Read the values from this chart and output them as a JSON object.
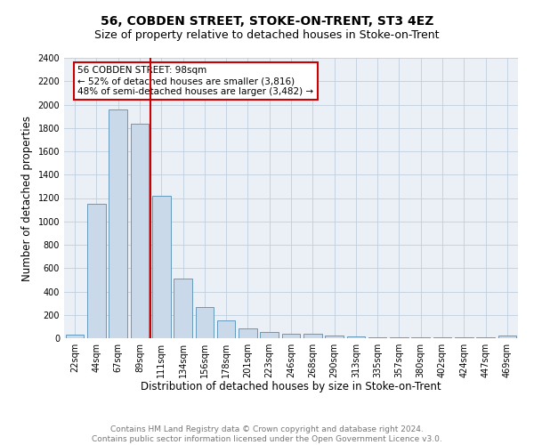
{
  "title": "56, COBDEN STREET, STOKE-ON-TRENT, ST3 4EZ",
  "subtitle": "Size of property relative to detached houses in Stoke-on-Trent",
  "xlabel": "Distribution of detached houses by size in Stoke-on-Trent",
  "ylabel": "Number of detached properties",
  "categories": [
    "22sqm",
    "44sqm",
    "67sqm",
    "89sqm",
    "111sqm",
    "134sqm",
    "156sqm",
    "178sqm",
    "201sqm",
    "223sqm",
    "246sqm",
    "268sqm",
    "290sqm",
    "313sqm",
    "335sqm",
    "357sqm",
    "380sqm",
    "402sqm",
    "424sqm",
    "447sqm",
    "469sqm"
  ],
  "values": [
    28,
    1150,
    1960,
    1840,
    1220,
    510,
    265,
    150,
    85,
    50,
    40,
    40,
    20,
    15,
    8,
    5,
    5,
    5,
    5,
    5,
    20
  ],
  "bar_color": "#c9d9ea",
  "bar_edge_color": "#6699bb",
  "grid_color": "#c0cede",
  "background_color": "#eaf0f6",
  "vline_x": 3.5,
  "vline_color": "#cc0000",
  "annotation_title": "56 COBDEN STREET: 98sqm",
  "annotation_line1": "← 52% of detached houses are smaller (3,816)",
  "annotation_line2": "48% of semi-detached houses are larger (3,482) →",
  "annotation_box_color": "#cc0000",
  "footer_line1": "Contains HM Land Registry data © Crown copyright and database right 2024.",
  "footer_line2": "Contains public sector information licensed under the Open Government Licence v3.0.",
  "ylim": [
    0,
    2400
  ],
  "yticks": [
    0,
    200,
    400,
    600,
    800,
    1000,
    1200,
    1400,
    1600,
    1800,
    2000,
    2200,
    2400
  ],
  "title_fontsize": 10,
  "subtitle_fontsize": 9,
  "xlabel_fontsize": 8.5,
  "ylabel_fontsize": 8.5,
  "tick_fontsize": 7,
  "annotation_fontsize": 7.5,
  "footer_fontsize": 6.5
}
